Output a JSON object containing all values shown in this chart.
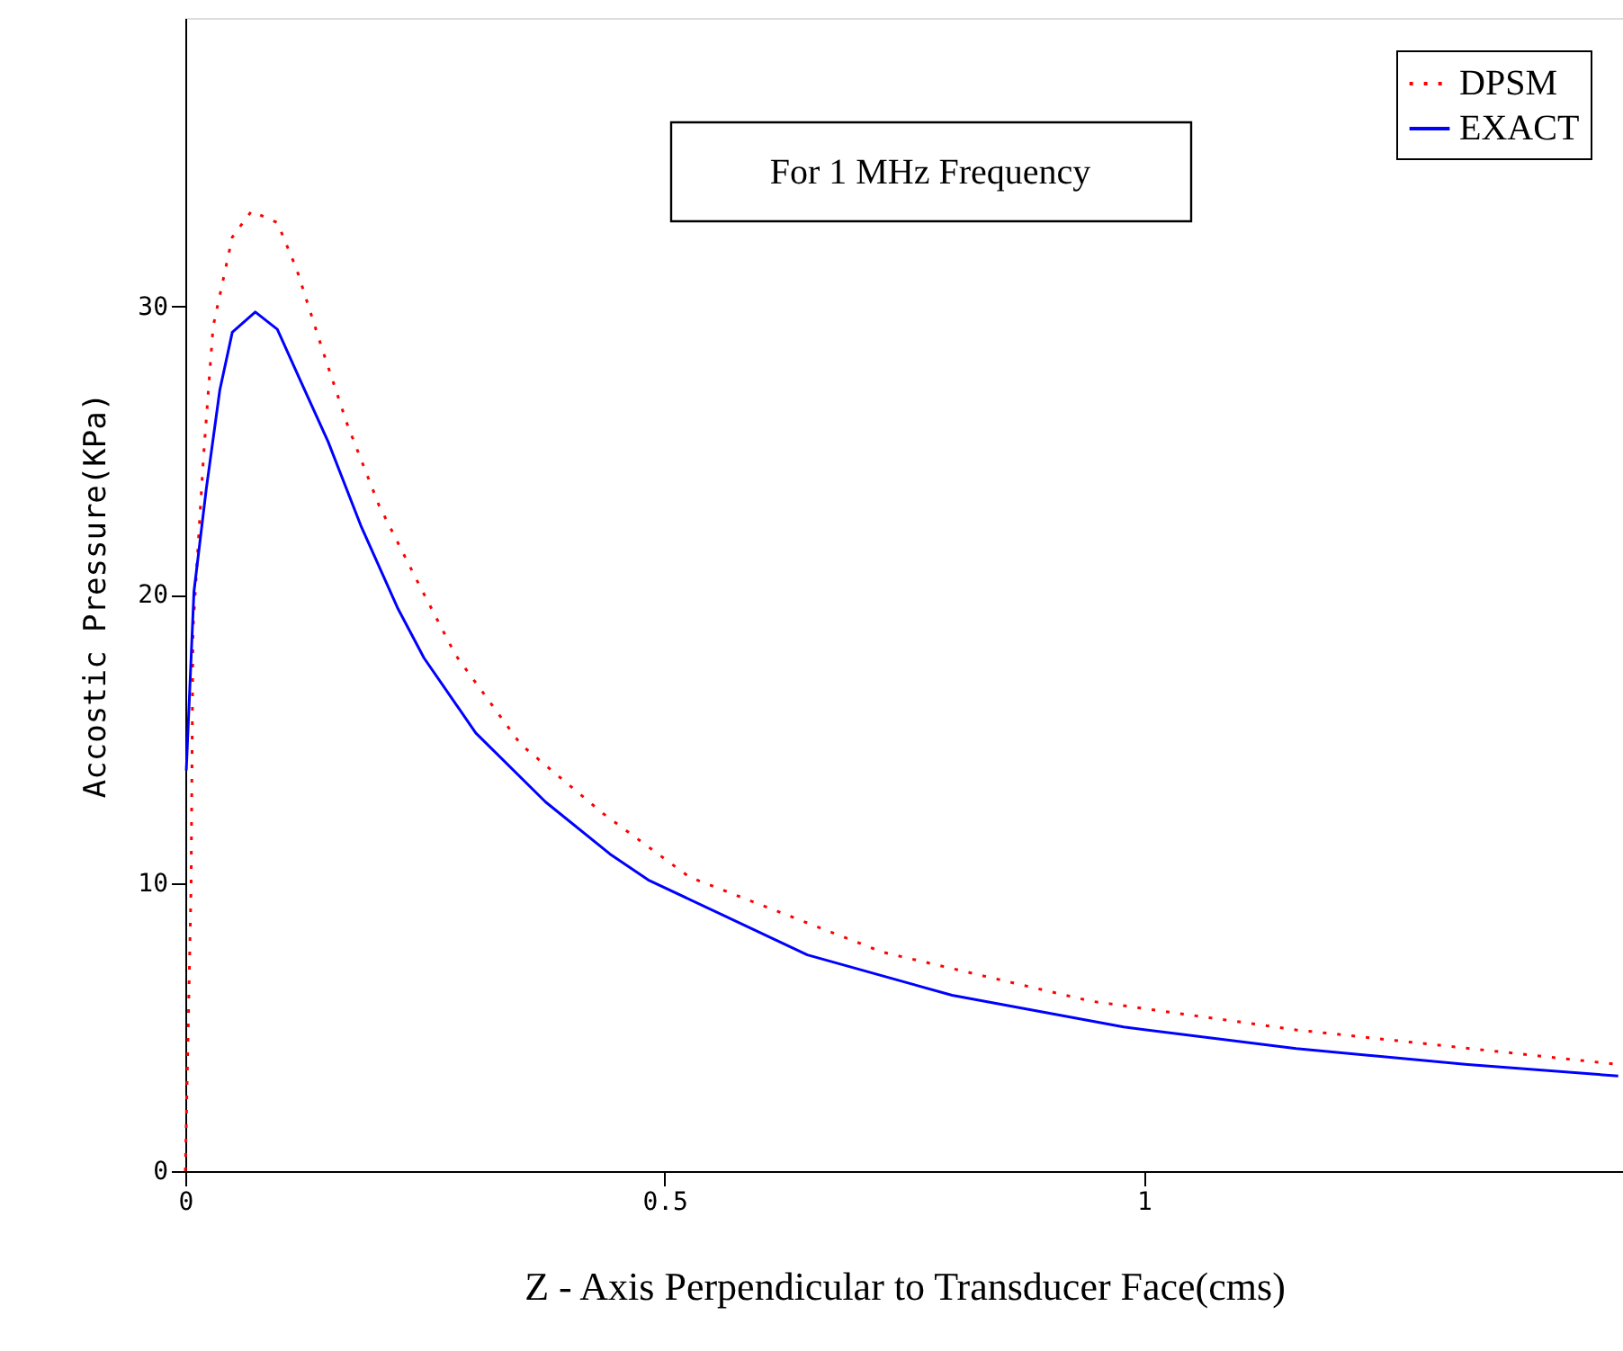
{
  "chart_data": {
    "type": "line",
    "xlabel": "Z - Axis Perpendicular to Transducer Face(cms)",
    "ylabel": "Accostic Pressure(KPa)",
    "annotations": [
      "For 1 MHz Frequency"
    ],
    "xlim": [
      0,
      1.5
    ],
    "ylim": [
      0,
      40
    ],
    "xticks": [
      0,
      0.5,
      1
    ],
    "yticks": [
      0,
      10,
      20,
      30
    ],
    "grid": false,
    "legend": "top right",
    "marker": "none",
    "series": [
      {
        "name": "DPSM",
        "color": "#ff0000",
        "line_style": "dotted",
        "x": [
          0,
          0.006,
          0.008,
          0.019,
          0.029,
          0.049,
          0.069,
          0.096,
          0.116,
          0.142,
          0.169,
          0.202,
          0.243,
          0.282,
          0.35,
          0.436,
          0.526,
          0.727,
          0.944,
          1.159,
          1.495
        ],
        "values": [
          0,
          9.9,
          18.8,
          24.8,
          29.3,
          32.4,
          33.3,
          32.9,
          31.3,
          28.6,
          25.9,
          23.1,
          20.4,
          17.9,
          14.8,
          12.4,
          10.2,
          7.6,
          5.9,
          4.9,
          3.7
        ]
      },
      {
        "name": "EXACT",
        "color": "#0000ff",
        "line_style": "solid",
        "x": [
          0.001,
          0.009,
          0.022,
          0.036,
          0.049,
          0.073,
          0.096,
          0.119,
          0.149,
          0.183,
          0.222,
          0.249,
          0.303,
          0.376,
          0.443,
          0.483,
          0.649,
          0.8,
          0.979,
          1.159,
          1.338,
          1.495
        ],
        "values": [
          13.9,
          20.1,
          23.7,
          27.1,
          29.1,
          29.8,
          29.2,
          27.5,
          25.3,
          22.4,
          19.5,
          17.8,
          15.2,
          12.8,
          11.0,
          10.1,
          7.5,
          6.1,
          5.0,
          4.25,
          3.7,
          3.3
        ]
      }
    ]
  }
}
